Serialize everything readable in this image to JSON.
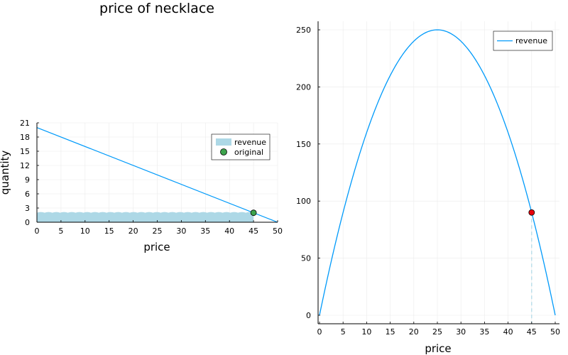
{
  "colors": {
    "line": "#009AFA",
    "fill": "#ADD8E6",
    "point_green": "#3DA44D",
    "point_red": "#E8000B",
    "grid": "#EBEBEB"
  },
  "chart_data": [
    {
      "type": "line",
      "title": "price of necklace",
      "xlabel": "price",
      "ylabel": "quantity",
      "xlim": [
        0,
        50
      ],
      "ylim": [
        0,
        21
      ],
      "xticks": [
        0,
        5,
        10,
        15,
        20,
        25,
        30,
        35,
        40,
        45,
        50
      ],
      "yticks": [
        0,
        3,
        6,
        9,
        12,
        15,
        18,
        21
      ],
      "grid": true,
      "legend_position": "top-right",
      "demand_line": {
        "x": [
          0,
          50
        ],
        "y": [
          20,
          0
        ]
      },
      "revenue_area": {
        "x": [
          0,
          45
        ],
        "y": 2
      },
      "original_point": {
        "x": 45,
        "y": 2
      },
      "legend": [
        "revenue",
        "original"
      ]
    },
    {
      "type": "line",
      "title": "",
      "xlabel": "price",
      "ylabel": "",
      "xlim": [
        0,
        50
      ],
      "ylim": [
        0,
        250
      ],
      "xticks": [
        0,
        5,
        10,
        15,
        20,
        25,
        30,
        35,
        40,
        45,
        50
      ],
      "yticks": [
        0,
        50,
        100,
        150,
        200,
        250
      ],
      "grid": true,
      "legend_position": "top-right",
      "series": [
        {
          "name": "revenue",
          "function": "revenue = p * (20 - 0.4 p)",
          "x_range": [
            0,
            50
          ]
        }
      ],
      "marked_point": {
        "x": 45,
        "y": 90
      },
      "legend": [
        "revenue"
      ]
    }
  ]
}
